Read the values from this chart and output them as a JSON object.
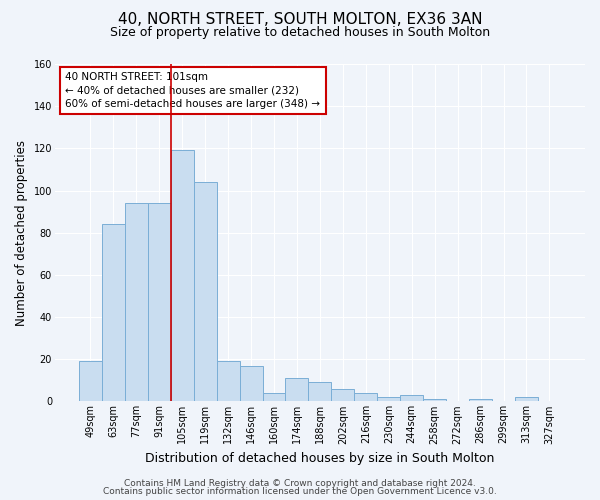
{
  "title": "40, NORTH STREET, SOUTH MOLTON, EX36 3AN",
  "subtitle": "Size of property relative to detached houses in South Molton",
  "xlabel": "Distribution of detached houses by size in South Molton",
  "ylabel": "Number of detached properties",
  "bar_labels": [
    "49sqm",
    "63sqm",
    "77sqm",
    "91sqm",
    "105sqm",
    "119sqm",
    "132sqm",
    "146sqm",
    "160sqm",
    "174sqm",
    "188sqm",
    "202sqm",
    "216sqm",
    "230sqm",
    "244sqm",
    "258sqm",
    "272sqm",
    "286sqm",
    "299sqm",
    "313sqm",
    "327sqm"
  ],
  "bar_values": [
    19,
    84,
    94,
    94,
    119,
    104,
    19,
    17,
    4,
    11,
    9,
    6,
    4,
    2,
    3,
    1,
    0,
    1,
    0,
    2,
    0
  ],
  "bar_color": "#c9ddf0",
  "bar_edge_color": "#7aaed6",
  "bg_color": "#f0f4fa",
  "grid_color": "#ffffff",
  "vline_color": "#cc0000",
  "annotation_title": "40 NORTH STREET: 101sqm",
  "annotation_line1": "← 40% of detached houses are smaller (232)",
  "annotation_line2": "60% of semi-detached houses are larger (348) →",
  "annotation_box_color": "#cc0000",
  "annotation_bg": "#ffffff",
  "ylim": [
    0,
    160
  ],
  "yticks": [
    0,
    20,
    40,
    60,
    80,
    100,
    120,
    140,
    160
  ],
  "footer1": "Contains HM Land Registry data © Crown copyright and database right 2024.",
  "footer2": "Contains public sector information licensed under the Open Government Licence v3.0.",
  "title_fontsize": 11,
  "subtitle_fontsize": 9,
  "xlabel_fontsize": 9,
  "ylabel_fontsize": 8.5,
  "tick_fontsize": 7,
  "annotation_fontsize": 7.5,
  "footer_fontsize": 6.5
}
